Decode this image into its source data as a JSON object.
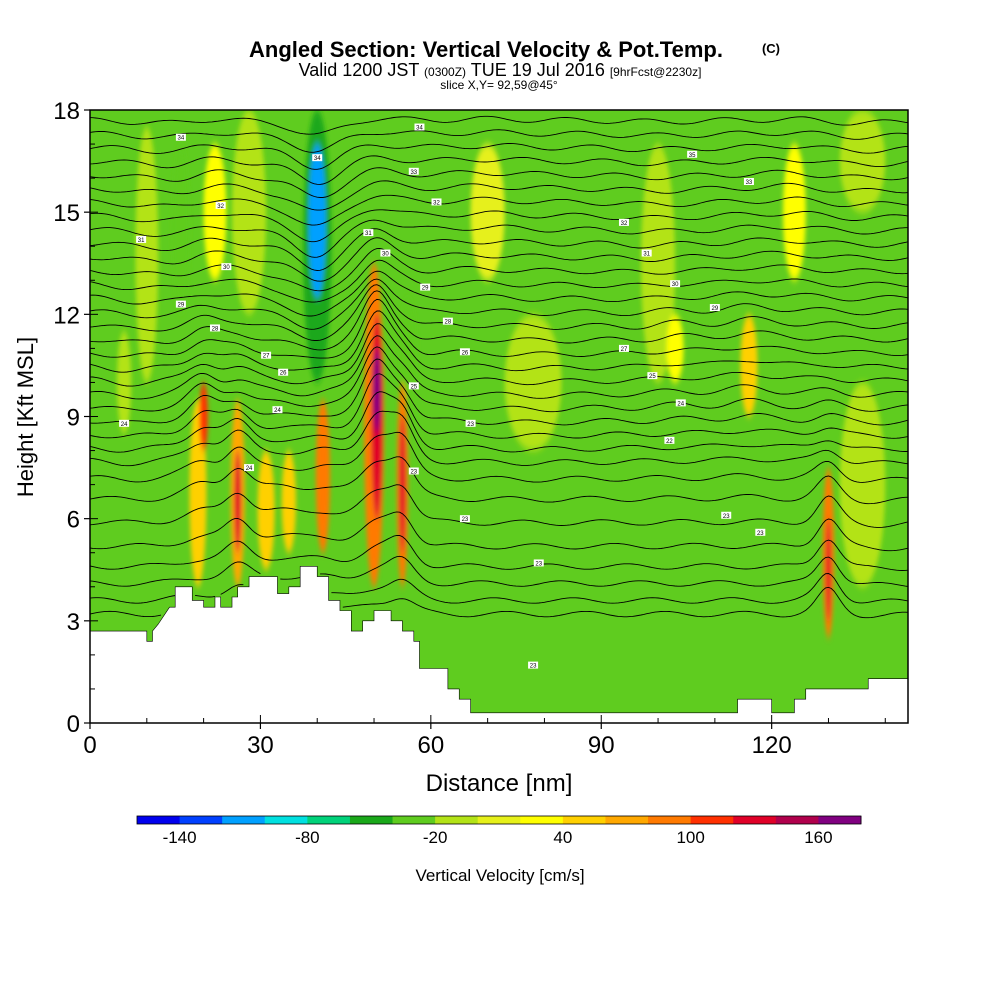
{
  "chart_data": {
    "type": "heatmap",
    "title": "Angled Section: Vertical Velocity & Pot.Temp.",
    "title_unit": "(C)",
    "subtitle": {
      "valid": "Valid 1200 JST",
      "utc": "(0300Z)",
      "date": "TUE 19 Jul 2016",
      "forecast": "[9hrFcst@2230z]"
    },
    "slice_label": "slice X,Y= 92,59@45°",
    "xlabel": "Distance [nm]",
    "ylabel": "Height [Kft MSL]",
    "xlim": [
      0,
      144
    ],
    "ylim": [
      0,
      18
    ],
    "x_ticks": [
      0,
      30,
      60,
      90,
      120
    ],
    "x_tick_labels": [
      "0",
      "30",
      "60",
      "90",
      "120"
    ],
    "y_ticks": [
      0,
      3,
      6,
      9,
      12,
      15,
      18
    ],
    "y_tick_labels": [
      "0",
      "3",
      "6",
      "9",
      "12",
      "15",
      "18"
    ],
    "grid": false,
    "background_fill": "#5fcc1f",
    "terrain": [
      [
        0,
        2.7
      ],
      [
        10,
        2.7
      ],
      [
        10,
        2.4
      ],
      [
        11,
        2.4
      ],
      [
        11,
        2.7
      ],
      [
        12,
        2.9
      ],
      [
        14,
        3.4
      ],
      [
        15,
        3.4
      ],
      [
        15,
        4
      ],
      [
        18,
        4
      ],
      [
        18,
        3.6
      ],
      [
        20,
        3.6
      ],
      [
        20,
        3.4
      ],
      [
        21,
        3.4
      ],
      [
        22,
        3.4
      ],
      [
        22,
        3.7
      ],
      [
        23,
        3.7
      ],
      [
        23,
        3.4
      ],
      [
        25,
        3.4
      ],
      [
        25,
        3.7
      ],
      [
        26,
        3.7
      ],
      [
        26,
        4
      ],
      [
        28,
        4
      ],
      [
        28,
        4.3
      ],
      [
        33,
        4.3
      ],
      [
        33,
        3.8
      ],
      [
        35,
        3.8
      ],
      [
        35,
        4
      ],
      [
        37,
        4
      ],
      [
        37,
        4.6
      ],
      [
        40,
        4.6
      ],
      [
        40,
        4.3
      ],
      [
        42,
        4.3
      ],
      [
        42,
        3.6
      ],
      [
        44,
        3.6
      ],
      [
        44,
        3.3
      ],
      [
        46,
        3.3
      ],
      [
        46,
        2.7
      ],
      [
        48,
        2.7
      ],
      [
        48,
        3
      ],
      [
        50,
        3
      ],
      [
        50,
        3.3
      ],
      [
        52,
        3.3
      ],
      [
        52,
        3.3
      ],
      [
        53,
        3.3
      ],
      [
        53,
        3
      ],
      [
        55,
        3
      ],
      [
        55,
        2.7
      ],
      [
        57,
        2.7
      ],
      [
        57,
        2.4
      ],
      [
        58,
        2.4
      ],
      [
        58,
        1.6
      ],
      [
        63,
        1.6
      ],
      [
        63,
        1
      ],
      [
        65,
        1
      ],
      [
        65,
        0.7
      ],
      [
        67,
        0.7
      ],
      [
        67,
        0.3
      ],
      [
        68,
        0.3
      ],
      [
        68,
        0.3
      ],
      [
        92,
        0.3
      ],
      [
        92,
        0.3
      ],
      [
        114,
        0.3
      ],
      [
        114,
        0.7
      ],
      [
        120,
        0.7
      ],
      [
        120,
        0.3
      ],
      [
        124,
        0.3
      ],
      [
        124,
        0.7
      ],
      [
        126,
        0.7
      ],
      [
        126,
        1
      ],
      [
        137,
        1
      ],
      [
        137,
        1.3
      ],
      [
        144,
        1.3
      ]
    ],
    "vertical_velocity_cells": [
      {
        "x": 6,
        "y0": 8.5,
        "y1": 11.5,
        "w": 2.5,
        "v": -20
      },
      {
        "x": 10,
        "y0": 10,
        "y1": 17.5,
        "w": 4,
        "v": -20
      },
      {
        "x": 16,
        "y0": 12,
        "y1": 17,
        "w": 3,
        "v": -30
      },
      {
        "x": 28,
        "y0": 12,
        "y1": 18,
        "w": 6,
        "v": -15
      },
      {
        "x": 40,
        "y0": 10,
        "y1": 18,
        "w": 5,
        "v": -60
      },
      {
        "x": 40,
        "y0": 12.5,
        "y1": 17,
        "w": 3,
        "v": -110
      },
      {
        "x": 56,
        "y0": 9.5,
        "y1": 12.5,
        "w": 3,
        "v": -25
      },
      {
        "x": 78,
        "y0": 8,
        "y1": 12,
        "w": 10,
        "v": -20
      },
      {
        "x": 100,
        "y0": 10,
        "y1": 17,
        "w": 6,
        "v": -20
      },
      {
        "x": 136,
        "y0": 4,
        "y1": 10,
        "w": 8,
        "v": -20
      },
      {
        "x": 136,
        "y0": 15,
        "y1": 18,
        "w": 8,
        "v": -20
      },
      {
        "x": 19,
        "y0": 4,
        "y1": 9.5,
        "w": 3,
        "v": 50
      },
      {
        "x": 20,
        "y0": 8,
        "y1": 10,
        "w": 1.5,
        "v": 100
      },
      {
        "x": 22,
        "y0": 13,
        "y1": 17,
        "w": 4,
        "v": 30
      },
      {
        "x": 26,
        "y0": 4,
        "y1": 9.5,
        "w": 2.5,
        "v": 70
      },
      {
        "x": 26,
        "y0": 5,
        "y1": 8,
        "w": 1.2,
        "v": 120
      },
      {
        "x": 31,
        "y0": 4.5,
        "y1": 8,
        "w": 3,
        "v": 40
      },
      {
        "x": 35,
        "y0": 5,
        "y1": 8,
        "w": 2.5,
        "v": 50
      },
      {
        "x": 41,
        "y0": 5,
        "y1": 9.5,
        "w": 2.5,
        "v": 80
      },
      {
        "x": 50,
        "y0": 4,
        "y1": 13.5,
        "w": 3.5,
        "v": 90
      },
      {
        "x": 50.5,
        "y0": 6,
        "y1": 12,
        "w": 2,
        "v": 130
      },
      {
        "x": 50.5,
        "y0": 8.5,
        "y1": 11,
        "w": 1.2,
        "v": 165
      },
      {
        "x": 55,
        "y0": 4,
        "y1": 10,
        "w": 2,
        "v": 90
      },
      {
        "x": 55,
        "y0": 5,
        "y1": 9,
        "w": 1,
        "v": 130
      },
      {
        "x": 103,
        "y0": 10,
        "y1": 12,
        "w": 3,
        "v": 30
      },
      {
        "x": 116,
        "y0": 9,
        "y1": 12,
        "w": 3,
        "v": 40
      },
      {
        "x": 130,
        "y0": 2.5,
        "y1": 7.5,
        "w": 2,
        "v": 80
      },
      {
        "x": 130,
        "y0": 3,
        "y1": 6,
        "w": 0.8,
        "v": 120
      },
      {
        "x": 124,
        "y0": 13,
        "y1": 17,
        "w": 4,
        "v": 20
      },
      {
        "x": 70,
        "y0": 13,
        "y1": 17,
        "w": 6,
        "v": 15
      }
    ],
    "isentrope_levels": [
      3.2,
      3.6,
      4.1,
      4.6,
      5.2,
      5.9,
      6.6,
      7.2,
      7.7,
      8.1,
      8.5,
      8.9,
      9.3,
      9.7,
      10.1,
      10.5,
      10.9,
      11.3,
      11.7,
      12.1,
      12.5,
      12.9,
      13.3,
      13.7,
      14.1,
      14.5,
      14.9,
      15.3,
      15.7,
      16.1,
      16.5,
      16.9,
      17.3,
      17.7
    ],
    "contour_labels": [
      {
        "x": 16,
        "y": 17.2,
        "text": "34"
      },
      {
        "x": 40,
        "y": 16.6,
        "text": "34"
      },
      {
        "x": 58,
        "y": 17.5,
        "text": "34"
      },
      {
        "x": 106,
        "y": 16.7,
        "text": "35"
      },
      {
        "x": 116,
        "y": 15.9,
        "text": "33"
      },
      {
        "x": 57,
        "y": 16.2,
        "text": "33"
      },
      {
        "x": 61,
        "y": 15.3,
        "text": "32"
      },
      {
        "x": 23,
        "y": 15.2,
        "text": "32"
      },
      {
        "x": 9,
        "y": 14.2,
        "text": "31"
      },
      {
        "x": 94,
        "y": 14.7,
        "text": "32"
      },
      {
        "x": 49,
        "y": 14.4,
        "text": "31"
      },
      {
        "x": 52,
        "y": 13.8,
        "text": "30"
      },
      {
        "x": 24,
        "y": 13.4,
        "text": "30"
      },
      {
        "x": 98,
        "y": 13.8,
        "text": "31"
      },
      {
        "x": 103,
        "y": 12.9,
        "text": "30"
      },
      {
        "x": 59,
        "y": 12.8,
        "text": "29"
      },
      {
        "x": 16,
        "y": 12.3,
        "text": "29"
      },
      {
        "x": 110,
        "y": 12.2,
        "text": "29"
      },
      {
        "x": 63,
        "y": 11.8,
        "text": "28"
      },
      {
        "x": 22,
        "y": 11.6,
        "text": "28"
      },
      {
        "x": 31,
        "y": 10.8,
        "text": "27"
      },
      {
        "x": 94,
        "y": 11.0,
        "text": "27"
      },
      {
        "x": 66,
        "y": 10.9,
        "text": "26"
      },
      {
        "x": 34,
        "y": 10.3,
        "text": "26"
      },
      {
        "x": 99,
        "y": 10.2,
        "text": "25"
      },
      {
        "x": 57,
        "y": 9.9,
        "text": "25"
      },
      {
        "x": 104,
        "y": 9.4,
        "text": "24"
      },
      {
        "x": 33,
        "y": 9.2,
        "text": "24"
      },
      {
        "x": 6,
        "y": 8.8,
        "text": "24"
      },
      {
        "x": 67,
        "y": 8.8,
        "text": "23"
      },
      {
        "x": 102,
        "y": 8.3,
        "text": "22"
      },
      {
        "x": 28,
        "y": 7.5,
        "text": "24"
      },
      {
        "x": 57,
        "y": 7.4,
        "text": "23"
      },
      {
        "x": 112,
        "y": 6.1,
        "text": "23"
      },
      {
        "x": 66,
        "y": 6.0,
        "text": "23"
      },
      {
        "x": 118,
        "y": 5.6,
        "text": "23"
      },
      {
        "x": 79,
        "y": 4.7,
        "text": "23"
      },
      {
        "x": 78,
        "y": 1.7,
        "text": "23"
      }
    ],
    "colorbar": {
      "label": "Vertical Velocity [cm/s]",
      "min": -160,
      "max": 180,
      "step": 20,
      "colors": [
        "#0000ee",
        "#0040ff",
        "#00a0ff",
        "#00e0e0",
        "#00d27a",
        "#1aa81a",
        "#5fcc1f",
        "#b3e317",
        "#e6f01a",
        "#ffff00",
        "#ffd000",
        "#ffa800",
        "#ff7a00",
        "#ff3000",
        "#e00028",
        "#b0004c",
        "#800080"
      ],
      "tick_values": [
        -140,
        -80,
        -20,
        40,
        100,
        160
      ],
      "tick_labels": [
        "-140",
        "-80",
        "-20",
        "40",
        "100",
        "160"
      ]
    }
  }
}
